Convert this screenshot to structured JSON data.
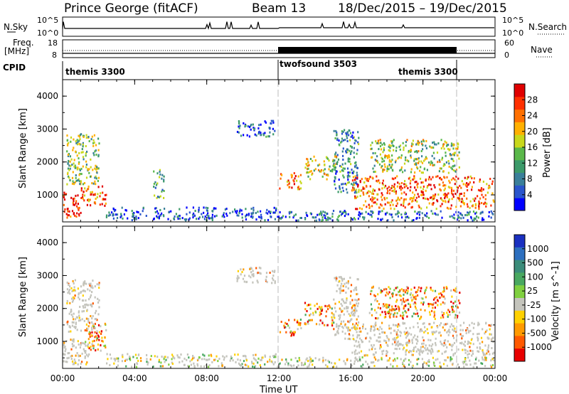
{
  "header": {
    "title": "Prince George (fitACF)",
    "beam": "Beam 13",
    "date_range": "18/Dec/2015 – 19/Dec/2015"
  },
  "summary": {
    "nsky_label": "N.Sky",
    "nsearch_label": "N.Search",
    "freq_label_top": "Freq.",
    "freq_label_bottom": "[MHz]",
    "nave_label": "Nave",
    "cpid_label": "CPID",
    "nsky_ticks": [
      "10^5",
      "10^0"
    ],
    "nsearch_ticks": [
      "10^5",
      "10^0"
    ],
    "freq_ticks": [
      "18",
      "8"
    ],
    "nave_ticks": [
      "60",
      "0"
    ]
  },
  "cpid_programs": [
    {
      "label": "themis 3300",
      "start_hour": 0,
      "end_hour": 12
    },
    {
      "label": "twofsound 3503",
      "start_hour": 12,
      "end_hour": 22
    },
    {
      "label": "themis 3300",
      "start_hour": 22,
      "end_hour": 24
    }
  ],
  "chart_data": [
    {
      "type": "heatmap",
      "name": "power",
      "xlabel": "",
      "ylabel": "Slant Range [km]",
      "xlim": [
        0,
        24
      ],
      "ylim": [
        180,
        4500
      ],
      "yticks": [
        1000,
        2000,
        3000,
        4000
      ],
      "xticks": [
        "00:00",
        "04:00",
        "08:00",
        "12:00",
        "16:00",
        "20:00",
        "00:00"
      ],
      "colorbar": {
        "label": "Power [dB]",
        "ticks": [
          "4",
          "8",
          "12",
          "16",
          "20",
          "24",
          "28"
        ],
        "tick_values": [
          4,
          8,
          12,
          16,
          20,
          24,
          28
        ],
        "range": [
          0,
          32
        ],
        "colors": [
          "#0000ff",
          "#2a55cc",
          "#3a7f9a",
          "#3c9a6a",
          "#5ab84a",
          "#c8d81c",
          "#ffb000",
          "#ff7000",
          "#ff3000",
          "#e00000"
        ]
      },
      "regions": [
        {
          "t0": 0.0,
          "t1": 1.0,
          "r0": 300,
          "r1": 1100,
          "level": 0.9
        },
        {
          "t0": 1.0,
          "t1": 2.4,
          "r0": 700,
          "r1": 1300,
          "level": 0.8
        },
        {
          "t0": 0.2,
          "t1": 2.0,
          "r0": 1300,
          "r1": 2900,
          "level": 0.45
        },
        {
          "t0": 2.4,
          "t1": 12.0,
          "r0": 250,
          "r1": 650,
          "level": 0.15
        },
        {
          "t0": 5.0,
          "t1": 5.6,
          "r0": 900,
          "r1": 1800,
          "level": 0.35
        },
        {
          "t0": 9.6,
          "t1": 11.8,
          "r0": 2800,
          "r1": 3300,
          "level": 0.2
        },
        {
          "t0": 12.0,
          "t1": 13.2,
          "r0": 1200,
          "r1": 1700,
          "level": 0.75
        },
        {
          "t0": 13.4,
          "t1": 15.2,
          "r0": 1500,
          "r1": 2200,
          "level": 0.55
        },
        {
          "t0": 15.0,
          "t1": 16.4,
          "r0": 1100,
          "r1": 3000,
          "level": 0.3
        },
        {
          "t0": 16.0,
          "t1": 23.9,
          "r0": 600,
          "r1": 1600,
          "level": 0.78
        },
        {
          "t0": 17.0,
          "t1": 22.0,
          "r0": 1700,
          "r1": 2700,
          "level": 0.5
        },
        {
          "t0": 12.0,
          "t1": 23.9,
          "r0": 250,
          "r1": 550,
          "level": 0.2
        }
      ]
    },
    {
      "type": "heatmap",
      "name": "velocity",
      "xlabel": "Time UT",
      "ylabel": "Slant Range [km]",
      "xlim": [
        0,
        24
      ],
      "ylim": [
        180,
        4500
      ],
      "yticks": [
        1000,
        2000,
        3000,
        4000
      ],
      "xticks": [
        "00:00",
        "04:00",
        "08:00",
        "12:00",
        "16:00",
        "20:00",
        "00:00"
      ],
      "colorbar": {
        "label": "Velocity [m s^-1]",
        "ticks": [
          "1000",
          "500",
          "100",
          "25",
          "-25",
          "-100",
          "-500",
          "-1000"
        ],
        "colors": [
          "#1a30c0",
          "#2d6fbf",
          "#3b8c7a",
          "#49a860",
          "#80d040",
          "#c4c4bc",
          "#ffd100",
          "#ff9a00",
          "#ff5a00",
          "#e80000"
        ]
      },
      "regions": [
        {
          "t0": 0.0,
          "t1": 1.5,
          "r0": 300,
          "r1": 1100,
          "kind": "ground"
        },
        {
          "t0": 1.2,
          "t1": 2.4,
          "r0": 700,
          "r1": 1600,
          "kind": "neg"
        },
        {
          "t0": 0.2,
          "t1": 2.0,
          "r0": 1300,
          "r1": 2900,
          "kind": "ground"
        },
        {
          "t0": 2.4,
          "t1": 12.0,
          "r0": 250,
          "r1": 650,
          "kind": "mixed"
        },
        {
          "t0": 9.6,
          "t1": 11.8,
          "r0": 2800,
          "r1": 3300,
          "kind": "ground"
        },
        {
          "t0": 12.0,
          "t1": 13.2,
          "r0": 1200,
          "r1": 1700,
          "kind": "neg"
        },
        {
          "t0": 13.4,
          "t1": 15.2,
          "r0": 1500,
          "r1": 2200,
          "kind": "neg"
        },
        {
          "t0": 15.0,
          "t1": 16.4,
          "r0": 1100,
          "r1": 3000,
          "kind": "ground"
        },
        {
          "t0": 16.0,
          "t1": 23.9,
          "r0": 600,
          "r1": 1600,
          "kind": "ground"
        },
        {
          "t0": 17.0,
          "t1": 22.0,
          "r0": 1700,
          "r1": 2700,
          "kind": "neg"
        },
        {
          "t0": 12.0,
          "t1": 23.9,
          "r0": 250,
          "r1": 550,
          "kind": "mixed"
        }
      ]
    }
  ],
  "colors": {
    "ground_scatter": "#c4c4bc",
    "axis": "#000000",
    "transition_line": "#bbbbbb"
  }
}
